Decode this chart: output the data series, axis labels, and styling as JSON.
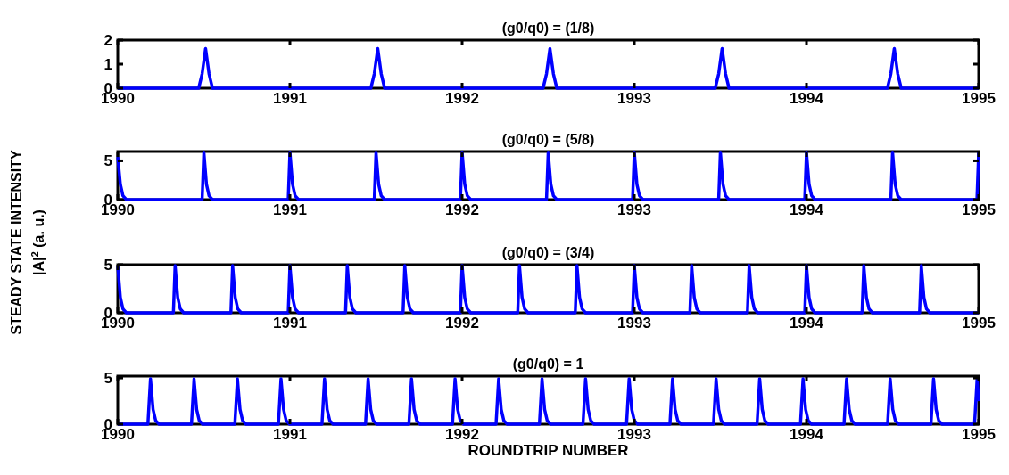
{
  "chart_data": [
    {
      "type": "line",
      "title": "(g0/q0) = (1/8)",
      "ylabel": "STEADY STATE INTENSITY\n|A|$^{2}$ (a. u.)",
      "xlim": [
        1990,
        1995
      ],
      "xticks": [
        1990,
        1991,
        1992,
        1993,
        1994,
        1995
      ],
      "ylim": [
        0,
        2
      ],
      "yticks": [
        0,
        1,
        2
      ],
      "marker": "none",
      "line_style": "solid",
      "series": [
        {
          "color": "#0000ff",
          "x": [
            1990,
            1990.47,
            1990.49,
            1990.51,
            1990.53,
            1990.55,
            1991.47,
            1991.49,
            1991.51,
            1991.53,
            1991.55,
            1992.47,
            1992.49,
            1992.51,
            1992.53,
            1992.55,
            1993.47,
            1993.49,
            1993.51,
            1993.53,
            1993.55,
            1994.47,
            1994.49,
            1994.51,
            1994.53,
            1994.55,
            1995
          ],
          "values": [
            0,
            0,
            0.6,
            1.65,
            0.6,
            0,
            0,
            0.6,
            1.65,
            0.6,
            0,
            0,
            0.6,
            1.65,
            0.6,
            0,
            0,
            0.6,
            1.65,
            0.6,
            0,
            0,
            0.6,
            1.65,
            0.6,
            0,
            0
          ]
        }
      ]
    },
    {
      "type": "line",
      "title": "(g0/q0) = (5/8)",
      "xlim": [
        1990,
        1995
      ],
      "xticks": [
        1990,
        1991,
        1992,
        1993,
        1994,
        1995
      ],
      "ylim": [
        0,
        6.2
      ],
      "yticks": [
        0,
        5
      ],
      "marker": "none",
      "line_style": "solid",
      "series": [
        {
          "color": "#0000ff",
          "x": [
            1990,
            1990.015,
            1990.03,
            1990.05,
            1990.49,
            1990.5,
            1990.515,
            1990.53,
            1990.55,
            1990.99,
            1991,
            1991.015,
            1991.03,
            1991.05,
            1991.49,
            1991.5,
            1991.515,
            1991.53,
            1991.55,
            1991.99,
            1992,
            1992.015,
            1992.03,
            1992.05,
            1992.49,
            1992.5,
            1992.515,
            1992.53,
            1992.55,
            1992.99,
            1993,
            1993.015,
            1993.03,
            1993.05,
            1993.49,
            1993.5,
            1993.515,
            1993.53,
            1993.55,
            1993.99,
            1994,
            1994.015,
            1994.03,
            1994.05,
            1994.49,
            1994.5,
            1994.515,
            1994.53,
            1994.55,
            1994.99,
            1995
          ],
          "values": [
            5.5,
            2,
            0.5,
            0,
            0,
            6.1,
            2,
            0.5,
            0,
            0,
            6.1,
            2,
            0.5,
            0,
            0,
            6.1,
            2,
            0.5,
            0,
            0,
            6.1,
            2,
            0.5,
            0,
            0,
            6.1,
            2,
            0.5,
            0,
            0,
            6.1,
            2,
            0.5,
            0,
            0,
            6.1,
            2,
            0.5,
            0,
            0,
            6.1,
            2,
            0.5,
            0,
            0,
            6.1,
            2,
            0.5,
            0,
            0,
            6.1
          ]
        }
      ]
    },
    {
      "type": "line",
      "title": "(g0/q0) = (3/4)",
      "xlim": [
        1990,
        1995
      ],
      "xticks": [
        1990,
        1991,
        1992,
        1993,
        1994,
        1995
      ],
      "ylim": [
        0,
        5
      ],
      "yticks": [
        0,
        5
      ],
      "marker": "none",
      "line_style": "solid",
      "series": [
        {
          "color": "#0000ff",
          "x": [
            1990,
            1990.015,
            1990.03,
            1990.05,
            1990.323,
            1990.333,
            1990.348,
            1990.363,
            1990.383,
            1990.657,
            1990.667,
            1990.682,
            1990.697,
            1990.717,
            1990.99,
            1991,
            1991.015,
            1991.03,
            1991.05,
            1991.323,
            1991.333,
            1991.348,
            1991.363,
            1991.383,
            1991.657,
            1991.667,
            1991.682,
            1991.697,
            1991.717,
            1991.99,
            1992,
            1992.015,
            1992.03,
            1992.05,
            1992.323,
            1992.333,
            1992.348,
            1992.363,
            1992.383,
            1992.657,
            1992.667,
            1992.682,
            1992.697,
            1992.717,
            1992.99,
            1993,
            1993.015,
            1993.03,
            1993.05,
            1993.323,
            1993.333,
            1993.348,
            1993.363,
            1993.383,
            1993.657,
            1993.667,
            1993.682,
            1993.697,
            1993.717,
            1993.99,
            1994,
            1994.015,
            1994.03,
            1994.05,
            1994.323,
            1994.333,
            1994.348,
            1994.363,
            1994.383,
            1994.657,
            1994.667,
            1994.682,
            1994.697,
            1994.717,
            1995
          ],
          "values": [
            4.9,
            1.6,
            0.4,
            0,
            0,
            4.9,
            1.6,
            0.4,
            0,
            0,
            4.9,
            1.6,
            0.4,
            0,
            0,
            4.9,
            1.6,
            0.4,
            0,
            0,
            4.9,
            1.6,
            0.4,
            0,
            0,
            4.9,
            1.6,
            0.4,
            0,
            0,
            4.9,
            1.6,
            0.4,
            0,
            0,
            4.9,
            1.6,
            0.4,
            0,
            0,
            4.9,
            1.6,
            0.4,
            0,
            0,
            4.9,
            1.6,
            0.4,
            0,
            0,
            4.9,
            1.6,
            0.4,
            0,
            0,
            4.9,
            1.6,
            0.4,
            0,
            0,
            4.9,
            1.6,
            0.4,
            0,
            0,
            4.9,
            1.6,
            0.4,
            0,
            0,
            4.9,
            1.6,
            0.4,
            0,
            0
          ]
        }
      ]
    },
    {
      "type": "line",
      "title": "(g0/q0) = 1",
      "xlabel": "ROUNDTRIP NUMBER",
      "xlim": [
        1990,
        1995
      ],
      "xticks": [
        1990,
        1991,
        1992,
        1993,
        1994,
        1995
      ],
      "ylim": [
        0,
        5.2
      ],
      "yticks": [
        0,
        5
      ],
      "marker": "none",
      "line_style": "solid",
      "series": [
        {
          "color": "#0000ff",
          "x": [
            1990,
            1990.175,
            1990.19,
            1990.205,
            1990.22,
            1990.24,
            1990.428,
            1990.443,
            1990.458,
            1990.473,
            1990.493,
            1990.68,
            1990.695,
            1990.71,
            1990.725,
            1990.745,
            1990.933,
            1990.948,
            1990.963,
            1990.978,
            1990.998,
            1991.186,
            1991.201,
            1991.216,
            1991.231,
            1991.251,
            1991.439,
            1991.454,
            1991.469,
            1991.484,
            1991.504,
            1991.691,
            1991.706,
            1991.721,
            1991.736,
            1991.756,
            1991.944,
            1991.959,
            1991.974,
            1991.989,
            1992.009,
            1992.197,
            1992.212,
            1992.227,
            1992.242,
            1992.262,
            1992.449,
            1992.464,
            1992.479,
            1992.494,
            1992.514,
            1992.702,
            1992.717,
            1992.732,
            1992.747,
            1992.767,
            1992.955,
            1992.97,
            1992.985,
            1993,
            1993.02,
            1993.207,
            1993.222,
            1993.237,
            1993.252,
            1993.272,
            1993.46,
            1993.475,
            1993.49,
            1993.505,
            1993.525,
            1993.713,
            1993.728,
            1993.743,
            1993.758,
            1993.778,
            1993.965,
            1993.98,
            1993.995,
            1994.01,
            1994.03,
            1994.218,
            1994.233,
            1994.248,
            1994.263,
            1994.283,
            1994.471,
            1994.486,
            1994.501,
            1994.516,
            1994.536,
            1994.723,
            1994.738,
            1994.753,
            1994.768,
            1994.788,
            1994.976,
            1994.991,
            1995
          ],
          "values": [
            0,
            0,
            4.9,
            1.6,
            0.4,
            0,
            0,
            4.9,
            1.6,
            0.4,
            0,
            0,
            4.9,
            1.6,
            0.4,
            0,
            0,
            4.9,
            1.6,
            0.4,
            0,
            0,
            4.9,
            1.6,
            0.4,
            0,
            0,
            4.9,
            1.6,
            0.4,
            0,
            0,
            4.9,
            1.6,
            0.4,
            0,
            0,
            4.9,
            1.6,
            0.4,
            0,
            0,
            4.9,
            1.6,
            0.4,
            0,
            0,
            4.9,
            1.6,
            0.4,
            0,
            0,
            4.9,
            1.6,
            0.4,
            0,
            0,
            4.9,
            1.6,
            0.4,
            0,
            0,
            4.9,
            1.6,
            0.4,
            0,
            0,
            4.9,
            1.6,
            0.4,
            0,
            0,
            4.9,
            1.6,
            0.4,
            0,
            0,
            4.9,
            1.6,
            0.4,
            0,
            0,
            4.9,
            1.6,
            0.4,
            0,
            0,
            4.9,
            1.6,
            0.4,
            0,
            0,
            4.9,
            1.6,
            0.4,
            0,
            0,
            4.9,
            2.5
          ]
        }
      ]
    }
  ]
}
